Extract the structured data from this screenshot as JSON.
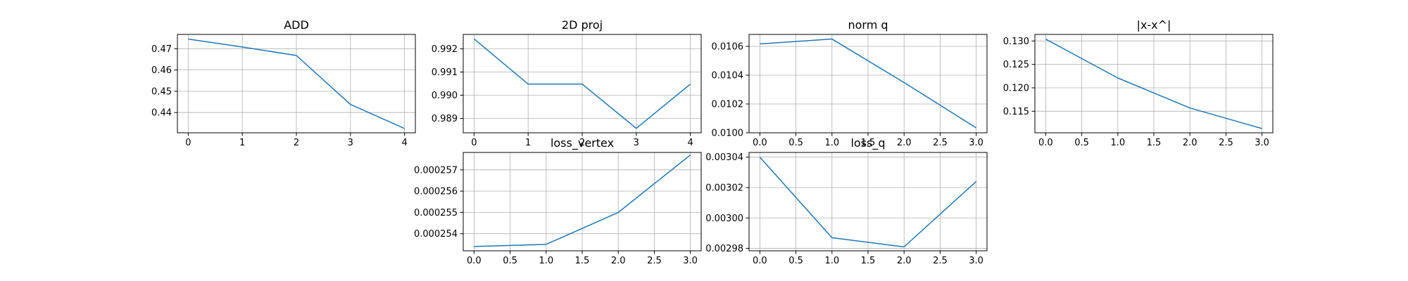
{
  "chart_data": [
    {
      "type": "line",
      "title": "ADD",
      "x": [
        0,
        1,
        2,
        3,
        4
      ],
      "series": [
        {
          "values": [
            0.4745,
            0.4708,
            0.4668,
            0.4438,
            0.4325
          ]
        }
      ],
      "xlim": [
        -0.2,
        4.2
      ],
      "ylim": [
        0.4305,
        0.4767
      ],
      "xticks": [
        0,
        1,
        2,
        3,
        4
      ],
      "xtick_labels": [
        "0",
        "1",
        "2",
        "3",
        "4"
      ],
      "yticks": [
        0.44,
        0.45,
        0.46,
        0.47
      ],
      "ytick_labels": [
        "0.44",
        "0.45",
        "0.46",
        "0.47"
      ],
      "grid": true
    },
    {
      "type": "line",
      "title": "2D proj",
      "x": [
        0,
        1,
        2,
        3,
        4
      ],
      "series": [
        {
          "values": [
            0.99243,
            0.99048,
            0.99048,
            0.98857,
            0.99048
          ]
        }
      ],
      "xlim": [
        -0.2,
        4.2
      ],
      "ylim": [
        0.98838,
        0.99262
      ],
      "xticks": [
        0,
        1,
        2,
        3,
        4
      ],
      "xtick_labels": [
        "0",
        "1",
        "2",
        "3",
        "4"
      ],
      "yticks": [
        0.989,
        0.99,
        0.991,
        0.992
      ],
      "ytick_labels": [
        "0.989",
        "0.990",
        "0.991",
        "0.992"
      ],
      "grid": true
    },
    {
      "type": "line",
      "title": "norm q",
      "x": [
        0,
        1,
        2,
        3
      ],
      "series": [
        {
          "values": [
            0.010617,
            0.010651,
            0.010349,
            0.010034
          ]
        }
      ],
      "xlim": [
        -0.15,
        3.15
      ],
      "ylim": [
        0.01,
        0.010683
      ],
      "xticks": [
        0,
        0.5,
        1,
        1.5,
        2,
        2.5,
        3
      ],
      "xtick_labels": [
        "0.0",
        "0.5",
        "1.0",
        "1.5",
        "2.0",
        "2.5",
        "3.0"
      ],
      "yticks": [
        0.01,
        0.0102,
        0.0104,
        0.0106
      ],
      "ytick_labels": [
        "0.0100",
        "0.0102",
        "0.0104",
        "0.0106"
      ],
      "grid": true
    },
    {
      "type": "line",
      "title": "|x-x^|",
      "x": [
        0,
        1,
        2,
        3
      ],
      "series": [
        {
          "values": [
            0.1304,
            0.1221,
            0.1157,
            0.1113
          ]
        }
      ],
      "xlim": [
        -0.15,
        3.15
      ],
      "ylim": [
        0.1104,
        0.1314
      ],
      "xticks": [
        0,
        0.5,
        1,
        1.5,
        2,
        2.5,
        3
      ],
      "xtick_labels": [
        "0.0",
        "0.5",
        "1.0",
        "1.5",
        "2.0",
        "2.5",
        "3.0"
      ],
      "yticks": [
        0.115,
        0.12,
        0.125,
        0.13
      ],
      "ytick_labels": [
        "0.115",
        "0.120",
        "0.125",
        "0.130"
      ],
      "grid": true
    },
    {
      "type": "line",
      "title": "loss_vertex",
      "x": [
        0,
        1,
        2,
        3
      ],
      "series": [
        {
          "values": [
            0.0002534,
            0.0002535,
            0.000255,
            0.0002577
          ]
        }
      ],
      "xlim": [
        -0.15,
        3.15
      ],
      "ylim": [
        0.000253198,
        0.000257818
      ],
      "xticks": [
        0,
        0.5,
        1,
        1.5,
        2,
        2.5,
        3
      ],
      "xtick_labels": [
        "0.0",
        "0.5",
        "1.0",
        "1.5",
        "2.0",
        "2.5",
        "3.0"
      ],
      "yticks": [
        0.000254,
        0.000255,
        0.000256,
        0.000257
      ],
      "ytick_labels": [
        "0.000254",
        "0.000255",
        "0.000256",
        "0.000257"
      ],
      "grid": true
    },
    {
      "type": "line",
      "title": "loss_q",
      "x": [
        0,
        1,
        2,
        3
      ],
      "series": [
        {
          "values": [
            0.00304,
            0.002987,
            0.002981,
            0.003024
          ]
        }
      ],
      "xlim": [
        -0.15,
        3.15
      ],
      "ylim": [
        0.0029784,
        0.0030431
      ],
      "xticks": [
        0,
        0.5,
        1,
        1.5,
        2,
        2.5,
        3
      ],
      "xtick_labels": [
        "0.0",
        "0.5",
        "1.0",
        "1.5",
        "2.0",
        "2.5",
        "3.0"
      ],
      "yticks": [
        0.00298,
        0.003,
        0.00302,
        0.00304
      ],
      "ytick_labels": [
        "0.00298",
        "0.00300",
        "0.00302",
        "0.00304"
      ],
      "grid": true
    }
  ],
  "colors": {
    "line": "#1f77b4",
    "grid": "#b0b0b0",
    "axes": "#000000",
    "background": "#ffffff"
  }
}
